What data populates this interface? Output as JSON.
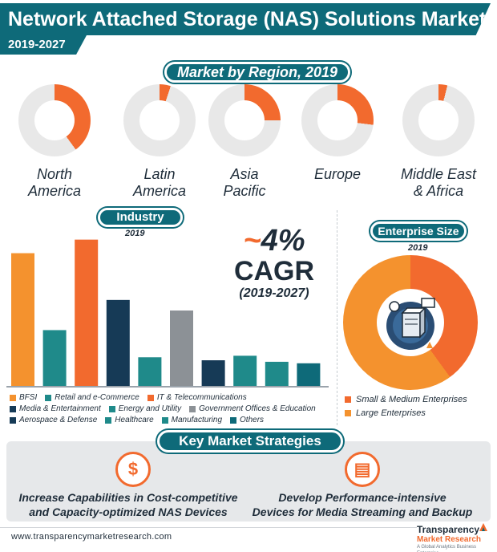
{
  "header": {
    "title": "Network Attached Storage (NAS) Solutions Market",
    "years": "2019-2027"
  },
  "region_section": {
    "title": "Market by Region, 2019",
    "regions": [
      {
        "label_lines": [
          "North",
          "America"
        ],
        "share_pct": 40
      },
      {
        "label_lines": [
          "Latin",
          "America"
        ],
        "share_pct": 5
      },
      {
        "label_lines": [
          "Asia",
          "Pacific"
        ],
        "share_pct": 25
      },
      {
        "label_lines": [
          "Europe"
        ],
        "share_pct": 27
      },
      {
        "label_lines": [
          "Middle East",
          "& Africa"
        ],
        "share_pct": 4
      }
    ]
  },
  "industry_section": {
    "title": "Industry",
    "year": "2019"
  },
  "cagr": {
    "tilde": "~",
    "value": "4%",
    "label": "CAGR",
    "period": "(2019-2027)"
  },
  "enterprise_section": {
    "title": "Enterprise Size",
    "year": "2019",
    "legend": [
      "Small & Medium Enterprises",
      "Large Enterprises"
    ]
  },
  "strategies": {
    "title": "Key Market Strategies",
    "items": [
      {
        "icon": "dollar-thumbs-up-icon",
        "glyph": "$",
        "lines": [
          "Increase Capabilities in Cost-competitive",
          "and Capacity-optimized NAS Devices"
        ]
      },
      {
        "icon": "media-devices-icon",
        "glyph": "▤",
        "lines": [
          "Develop Performance-intensive",
          "Devices for Media Streaming and Backup"
        ]
      }
    ]
  },
  "footer": {
    "url": "www.transparencymarketresearch.com",
    "logo_line1": "Transparency",
    "logo_line2": "Market Research",
    "logo_line3": "A Global Analytics Business Enterprise"
  },
  "colors": {
    "teal_dark": "#0e6a79",
    "teal": "#1f8a8a",
    "orange": "#f26a2e",
    "orange_light": "#f4922e",
    "navy": "#163a56",
    "grey": "#8c9196",
    "donut_bg": "#e8e8e8"
  },
  "chart_data": [
    {
      "type": "bar",
      "title": "Industry",
      "subtitle": "2019",
      "categories": [
        "BFSI",
        "Retail and e-Commerce",
        "IT & Telecommunications",
        "Media & Entertainment",
        "Energy and Utility",
        "Government Offices & Education",
        "Aerospace & Defense",
        "Healthcare",
        "Manufacturing",
        "Others"
      ],
      "values": [
        88,
        37,
        97,
        57,
        19,
        50,
        17,
        20,
        16,
        15
      ],
      "colors": [
        "#f4922e",
        "#1f8a8a",
        "#f26a2e",
        "#163a56",
        "#1f8a8a",
        "#8c9196",
        "#163a56",
        "#1f8a8a",
        "#1f8a8a",
        "#0e6a79"
      ],
      "ylim": [
        0,
        100
      ],
      "legend_rows": [
        [
          0,
          1,
          2
        ],
        [
          3,
          4,
          5
        ],
        [
          6,
          7,
          8,
          9
        ]
      ]
    },
    {
      "type": "pie",
      "title": "Enterprise Size",
      "subtitle": "2019",
      "labels": [
        "Small & Medium Enterprises",
        "Large Enterprises"
      ],
      "values": [
        40,
        60
      ],
      "colors": [
        "#f26a2e",
        "#f4922e"
      ]
    }
  ]
}
